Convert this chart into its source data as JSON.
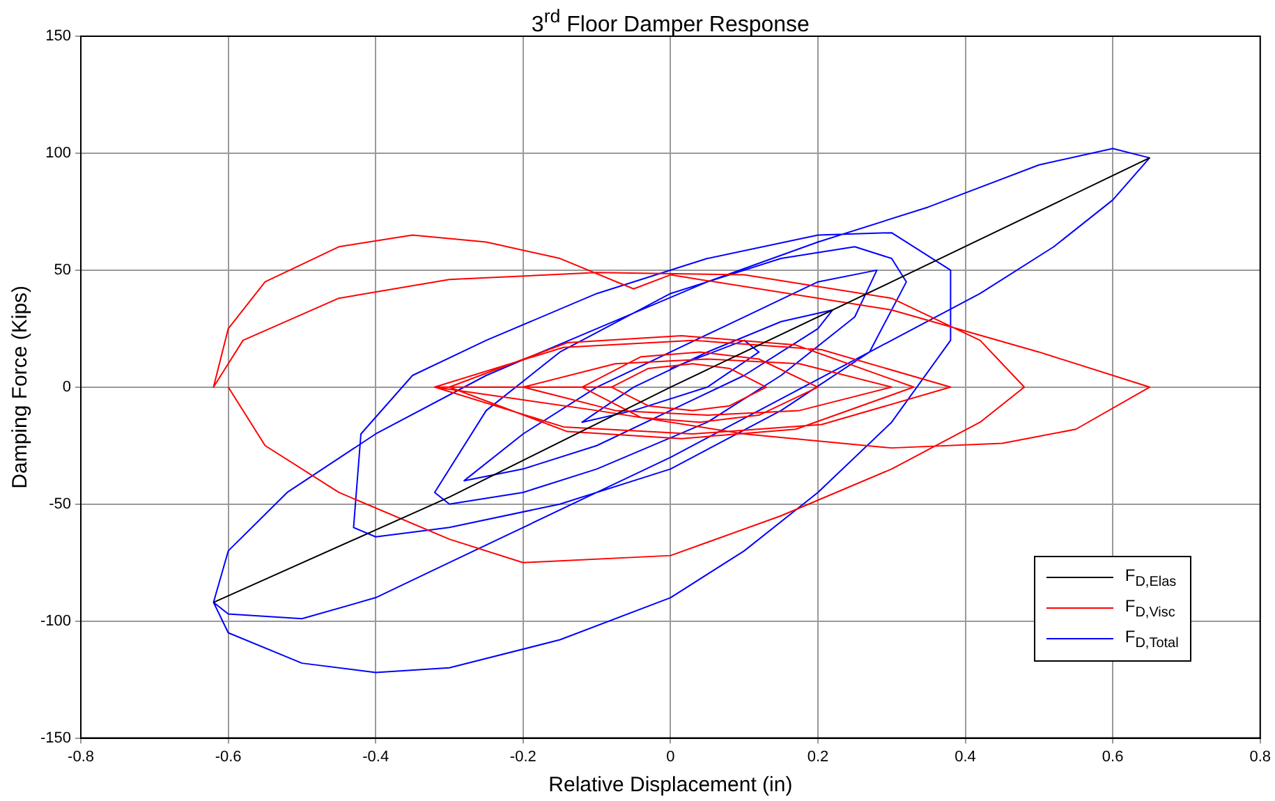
{
  "chart_data": {
    "type": "line",
    "title": "3$^{rd}$ Floor Damper Response",
    "xlabel": "Relative Displacement (in)",
    "ylabel": "Damping Force (Kips)",
    "xlim": [
      -0.8,
      0.8
    ],
    "xticks": [
      -0.8,
      -0.6,
      -0.4,
      -0.2,
      0,
      0.2,
      0.4,
      0.6,
      0.8
    ],
    "ylim": [
      -150,
      150
    ],
    "yticks": [
      -150,
      -100,
      -50,
      0,
      50,
      100,
      150
    ],
    "grid": true,
    "legend": "bottom right",
    "marker": "none",
    "line_style": "solid",
    "series": [
      {
        "name": "F$_{D,Elas}$",
        "color": "#000000",
        "x": [
          -0.62,
          -0.3,
          0,
          0.3,
          0.65
        ],
        "values": [
          -92,
          -47,
          0,
          45,
          98
        ]
      },
      {
        "name": "F$_{D,Visc}$",
        "color": "#ff0000",
        "x": [
          -0.6,
          -0.55,
          -0.45,
          -0.3,
          -0.2,
          0,
          0.15,
          0.3,
          0.42,
          0.48,
          0.42,
          0.3,
          0.1,
          -0.1,
          -0.3,
          -0.45,
          -0.58,
          -0.62,
          -0.6,
          -0.55,
          -0.45,
          -0.35,
          -0.25,
          -0.15,
          -0.05,
          0,
          0.3,
          0.5,
          0.65,
          0.55,
          0.45,
          0.3,
          0.1,
          -0.1,
          -0.32,
          -0.145,
          0.03,
          0.205,
          0.38,
          0.205,
          0.03,
          -0.145,
          -0.32,
          -0.3,
          -0.14,
          0.015,
          0.17,
          0.33,
          0.17,
          0.015,
          -0.14,
          -0.3,
          -0.2,
          -0.075,
          0.05,
          0.175,
          0.3,
          0.175,
          0.05,
          -0.075,
          -0.2,
          -0.12,
          -0.04,
          0.04,
          0.12,
          0.2,
          0.12,
          0.04,
          -0.04,
          -0.12,
          -0.08,
          -0.03,
          0.03,
          0.08,
          0.13,
          0.08,
          0.03,
          -0.03,
          -0.08
        ],
        "values": [
          0,
          -25,
          -45,
          -65,
          -75,
          -72,
          -55,
          -35,
          -15,
          0,
          20,
          38,
          48,
          49,
          46,
          38,
          20,
          0,
          25,
          45,
          60,
          65,
          62,
          55,
          42,
          48,
          33,
          15,
          0,
          -18,
          -24,
          -26,
          -20,
          -10,
          0,
          -17,
          -20,
          -16,
          0,
          16,
          20,
          17,
          0,
          0,
          -19,
          -22,
          -18,
          0,
          18,
          22,
          19,
          0,
          0,
          -10,
          -12,
          -10,
          0,
          10,
          12,
          10,
          0,
          0,
          -13,
          -15,
          -12,
          0,
          12,
          15,
          13,
          0,
          0,
          -8,
          -10,
          -8,
          0,
          8,
          10,
          8,
          0
        ]
      },
      {
        "name": "F$_{D,Total}$",
        "color": "#0000ff",
        "x": [
          -0.62,
          -0.6,
          -0.52,
          -0.4,
          -0.25,
          -0.1,
          0.05,
          0.2,
          0.35,
          0.5,
          0.6,
          0.65,
          0.6,
          0.52,
          0.42,
          0.3,
          0.15,
          0,
          -0.1,
          -0.2,
          -0.3,
          -0.4,
          -0.5,
          -0.6,
          -0.62,
          -0.6,
          -0.5,
          -0.4,
          -0.3,
          -0.15,
          0,
          0.1,
          0.2,
          0.3,
          0.38,
          0.38,
          0.3,
          0.2,
          0.05,
          -0.1,
          -0.25,
          -0.35,
          -0.42,
          -0.43,
          -0.4,
          -0.3,
          -0.15,
          0,
          0.15,
          0.27,
          0.32,
          0.3,
          0.25,
          0.15,
          0,
          -0.15,
          -0.25,
          -0.32,
          -0.3,
          -0.2,
          -0.1,
          0.05,
          0.15,
          0.25,
          0.28,
          0.2,
          0.1,
          0,
          -0.1,
          -0.2,
          -0.28,
          -0.2,
          -0.1,
          0,
          0.1,
          0.2,
          0.22,
          0.15,
          0.05,
          -0.05,
          -0.12,
          -0.05,
          0.05,
          0.12,
          0.1,
          0
        ],
        "values": [
          -92,
          -70,
          -45,
          -20,
          5,
          25,
          45,
          62,
          77,
          95,
          102,
          98,
          80,
          60,
          40,
          20,
          -5,
          -30,
          -45,
          -60,
          -75,
          -90,
          -99,
          -97,
          -92,
          -105,
          -118,
          -122,
          -120,
          -108,
          -90,
          -70,
          -45,
          -15,
          20,
          50,
          66,
          65,
          55,
          40,
          20,
          5,
          -20,
          -60,
          -64,
          -60,
          -50,
          -35,
          -10,
          15,
          45,
          55,
          60,
          55,
          40,
          15,
          -10,
          -45,
          -50,
          -45,
          -35,
          -15,
          5,
          30,
          50,
          45,
          30,
          15,
          0,
          -20,
          -40,
          -35,
          -25,
          -10,
          5,
          25,
          33,
          28,
          15,
          0,
          -15,
          -10,
          0,
          15,
          20,
          8
        ]
      }
    ]
  }
}
